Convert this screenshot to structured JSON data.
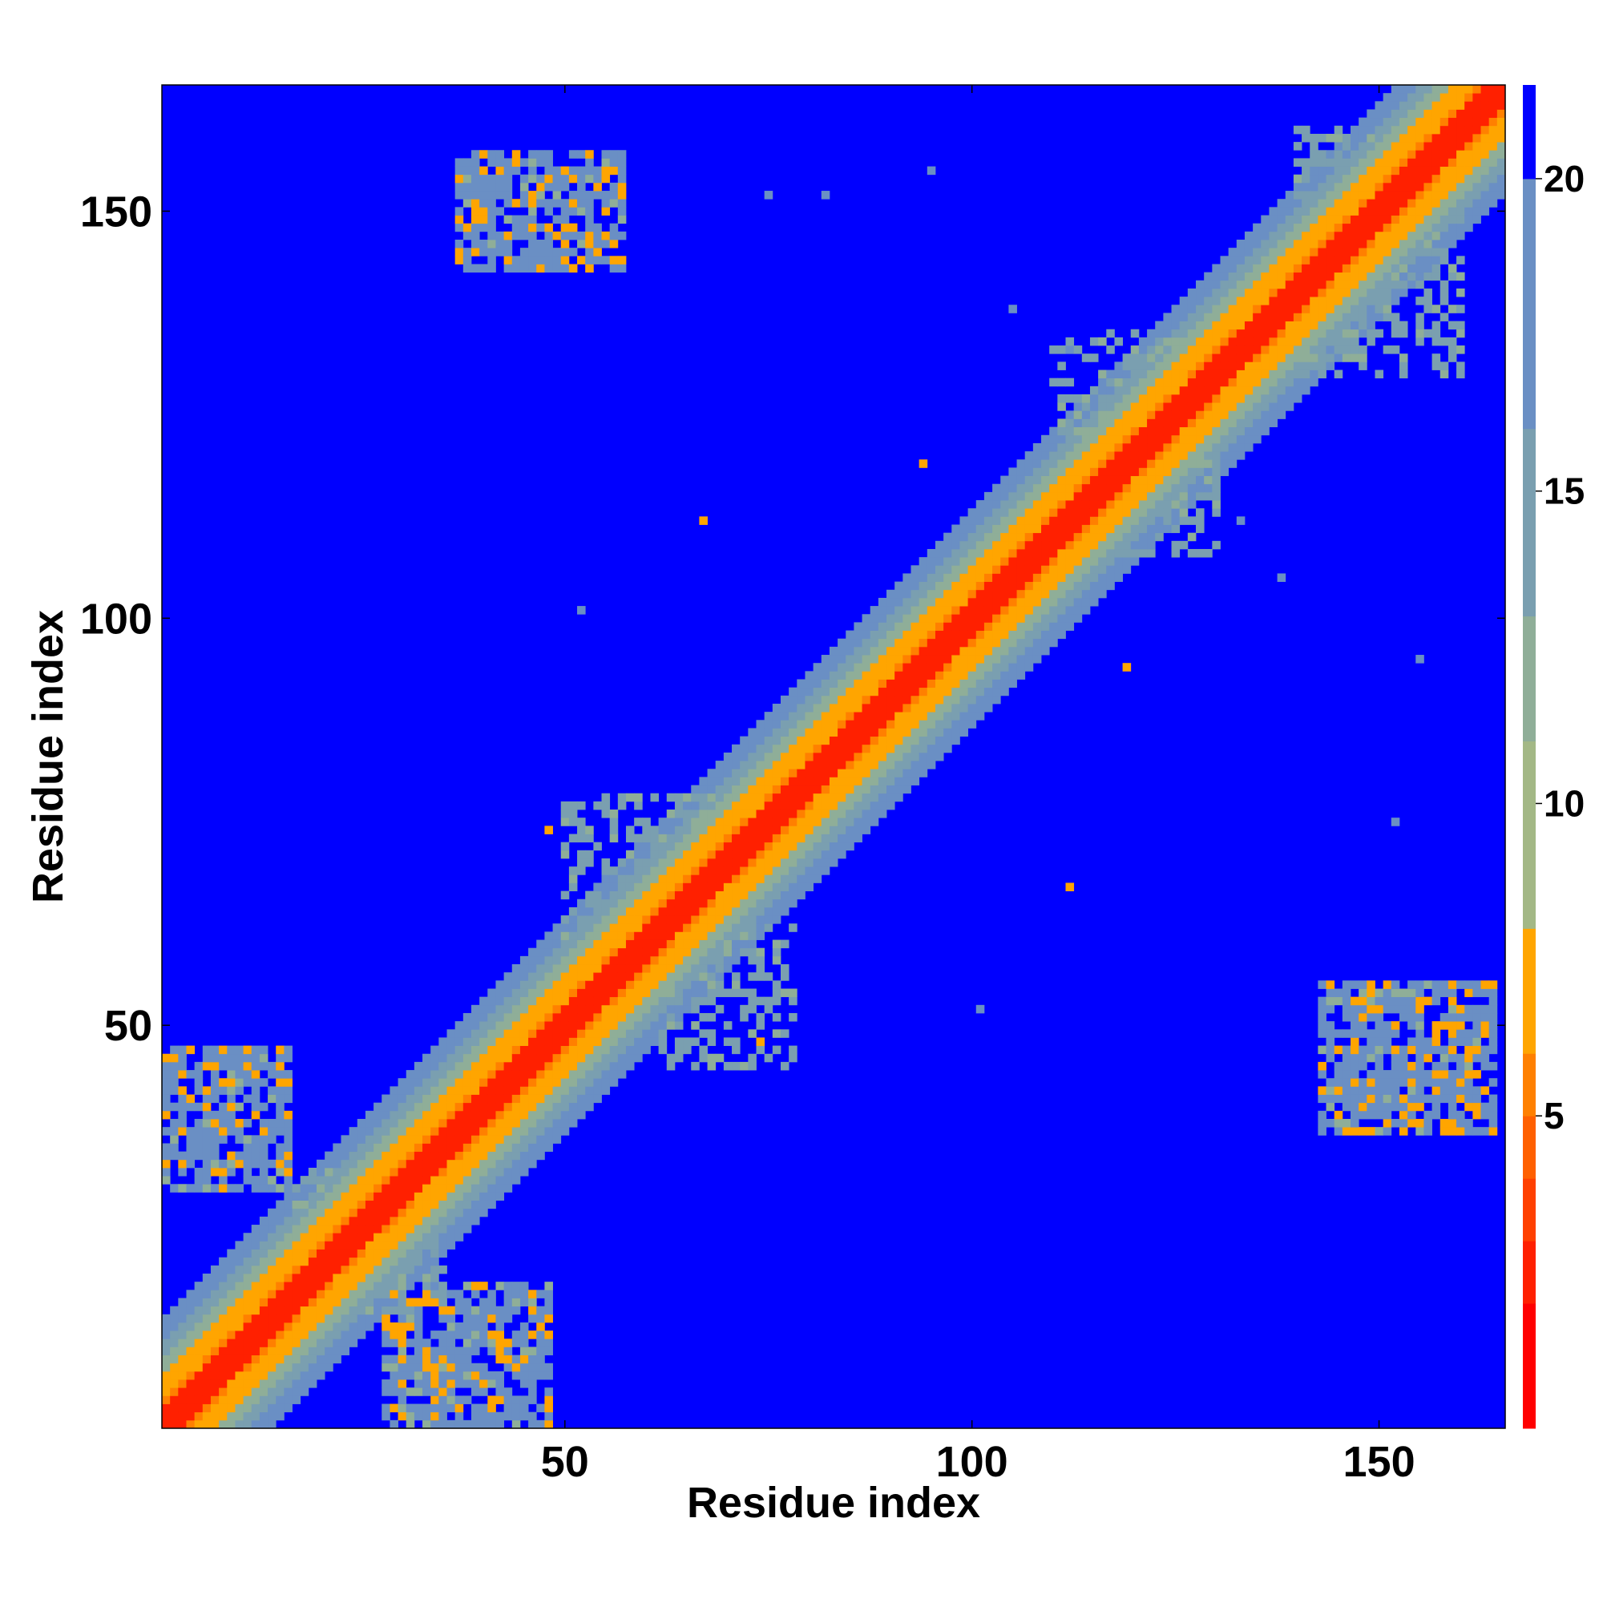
{
  "chart_data": {
    "type": "heatmap",
    "title": "",
    "xlabel": "Residue index",
    "ylabel": "Residue index",
    "n_residues": 165,
    "xlim": [
      1,
      165
    ],
    "ylim": [
      1,
      165
    ],
    "x_ticks": [
      "50",
      "100",
      "150"
    ],
    "y_ticks": [
      "50",
      "100",
      "150"
    ],
    "colorbar": {
      "ticks": [
        "5",
        "10",
        "15",
        "20"
      ],
      "range": [
        0,
        21.5
      ],
      "colors": [
        "#ff0000",
        "#ff2000",
        "#ff4000",
        "#ff6000",
        "#ff8000",
        "#ffa500",
        "#a3b886",
        "#8fae98",
        "#7a9fb0",
        "#6a8fc4",
        "#0000ff"
      ],
      "levels": [
        2,
        3,
        4,
        5,
        6,
        8,
        11,
        13,
        16,
        20,
        21.5
      ]
    },
    "diagonal_band": {
      "contact_width": 2.5,
      "near_width": 6,
      "far_width": 10,
      "edge_width": 13
    },
    "off_diagonal_blocks": [
      {
        "x": [
          37,
          57
        ],
        "y": [
          143,
          157
        ],
        "value": 17,
        "strong": true
      },
      {
        "x": [
          143,
          164
        ],
        "y": [
          37,
          55
        ],
        "value": 17,
        "strong": true
      },
      {
        "x": [
          1,
          16
        ],
        "y": [
          30,
          47
        ],
        "value": 17,
        "strong": true
      },
      {
        "x": [
          28,
          48
        ],
        "y": [
          1,
          18
        ],
        "value": 17,
        "strong": true
      },
      {
        "x": [
          50,
          70
        ],
        "y": [
          60,
          78
        ],
        "value": 15,
        "strong": false
      },
      {
        "x": [
          62,
          78
        ],
        "y": [
          45,
          62
        ],
        "value": 15,
        "strong": false
      },
      {
        "x": [
          110,
          130
        ],
        "y": [
          108,
          135
        ],
        "value": 15,
        "strong": false
      },
      {
        "x": [
          140,
          160
        ],
        "y": [
          130,
          160
        ],
        "value": 15,
        "strong": false
      },
      {
        "x": [
          17,
          35
        ],
        "y": [
          15,
          32
        ],
        "value": 15,
        "strong": false
      }
    ],
    "isolated_contacts": [
      {
        "x": 94,
        "y": 119,
        "value": 7
      },
      {
        "x": 67,
        "y": 112,
        "value": 7
      },
      {
        "x": 119,
        "y": 94,
        "value": 7
      },
      {
        "x": 112,
        "y": 67,
        "value": 7
      },
      {
        "x": 74,
        "y": 48,
        "value": 7
      },
      {
        "x": 48,
        "y": 74,
        "value": 7
      },
      {
        "x": 95,
        "y": 155,
        "value": 17
      },
      {
        "x": 75,
        "y": 152,
        "value": 17
      },
      {
        "x": 82,
        "y": 152,
        "value": 17
      },
      {
        "x": 52,
        "y": 101,
        "value": 17
      },
      {
        "x": 155,
        "y": 95,
        "value": 17
      },
      {
        "x": 152,
        "y": 75,
        "value": 17
      },
      {
        "x": 101,
        "y": 52,
        "value": 17
      },
      {
        "x": 133,
        "y": 112,
        "value": 17
      },
      {
        "x": 138,
        "y": 105,
        "value": 17
      },
      {
        "x": 112,
        "y": 133,
        "value": 17
      },
      {
        "x": 105,
        "y": 138,
        "value": 17
      }
    ]
  }
}
